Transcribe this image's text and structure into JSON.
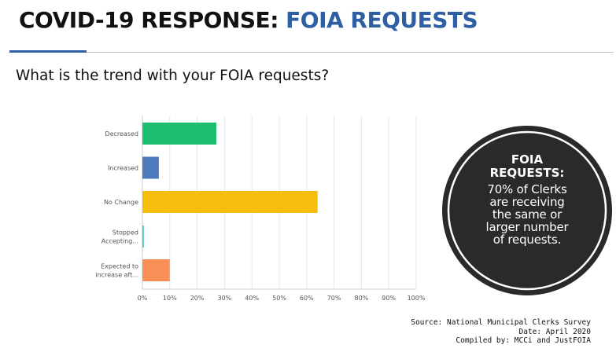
{
  "header": {
    "title_main": "COVID-19 RESPONSE: ",
    "title_accent": "FOIA REQUESTS",
    "question": "What is the trend with your FOIA requests?"
  },
  "callout": {
    "heading": "FOIA REQUESTS:",
    "body": "70% of Clerks are receiving the same or larger number of requests."
  },
  "source": {
    "line1": "Source: National Municipal Clerks Survey",
    "line2": "Date: April 2020",
    "line3": "Compiled by: MCCi and JustFOIA"
  },
  "colors": {
    "title_accent": "#2e5fa3",
    "callout_bg": "#2a2a2a"
  },
  "chart_data": {
    "type": "bar",
    "orientation": "horizontal",
    "categories": [
      "Decreased",
      "Increased",
      "No Change",
      "Stopped Accepting...",
      "Expected to increase aft..."
    ],
    "category_lines": [
      [
        "Decreased"
      ],
      [
        "Increased"
      ],
      [
        "No Change"
      ],
      [
        "Stopped",
        "Accepting..."
      ],
      [
        "Expected to",
        "increase aft..."
      ]
    ],
    "values": [
      27,
      6,
      64,
      0.5,
      10
    ],
    "colors": [
      "#1dbf6e",
      "#4e79bb",
      "#f7bd0c",
      "#3fc9c9",
      "#f98f57"
    ],
    "x_ticks": [
      "0%",
      "10%",
      "20%",
      "30%",
      "40%",
      "50%",
      "60%",
      "70%",
      "80%",
      "90%",
      "100%"
    ],
    "xlim": [
      0,
      100
    ],
    "unit": "%",
    "grid": true
  }
}
